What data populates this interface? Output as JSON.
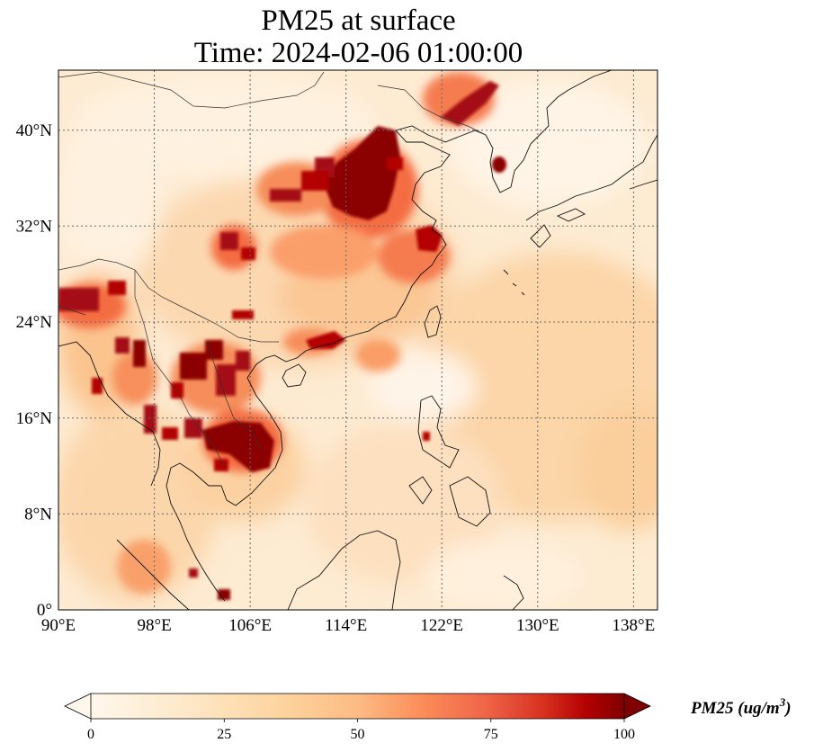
{
  "map": {
    "title_line1": "PM25 at surface",
    "title_line2": "Time: 2024-02-06 01:00:00",
    "variable": "PM25",
    "level": "surface",
    "time": "2024-02-06 01:00:00",
    "extent": {
      "lon_min": 90,
      "lon_max": 140,
      "lat_min": 0,
      "lat_max": 45
    },
    "lon_ticks": [
      "90°E",
      "98°E",
      "106°E",
      "114°E",
      "122°E",
      "130°E",
      "138°E"
    ],
    "lat_ticks": [
      "0°",
      "8°N",
      "16°N",
      "24°N",
      "32°N",
      "40°N"
    ],
    "gridlines": true,
    "colormap": "OrRd",
    "colors": {
      "low": "#fff7ec",
      "mid_low": "#fdd49e",
      "mid": "#fc8d59",
      "mid_high": "#d7301f",
      "high": "#7f0000"
    }
  },
  "colorbar": {
    "ticks": [
      "0",
      "25",
      "50",
      "75",
      "100"
    ],
    "min": 0,
    "max": 100,
    "extend": "both",
    "label": "PM25 (ug/m3)",
    "label_main": "PM25 (ug/m",
    "label_sup": "3",
    "label_end": ")"
  }
}
